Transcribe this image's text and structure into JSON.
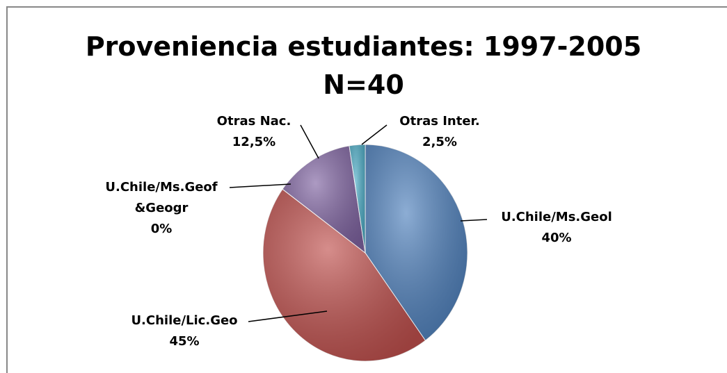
{
  "chart_data": {
    "type": "pie",
    "title": "Proveniencia estudiantes: 1997-2005",
    "subtitle": "N=40",
    "categories": [
      "U.Chile/Ms.Geol",
      "U.Chile/Lic.Geo",
      "U.Chile/Ms.Geof &Geogr",
      "Otras Nac.",
      "Otras Inter."
    ],
    "values": [
      40,
      45,
      0,
      12.5,
      2.5
    ],
    "value_labels": [
      "40%",
      "45%",
      "0%",
      "12,5%",
      "2,5%"
    ],
    "colors": [
      "#4f81bd",
      "#c0504d",
      "#9bbb59",
      "#8064a2",
      "#4bacc6"
    ]
  }
}
